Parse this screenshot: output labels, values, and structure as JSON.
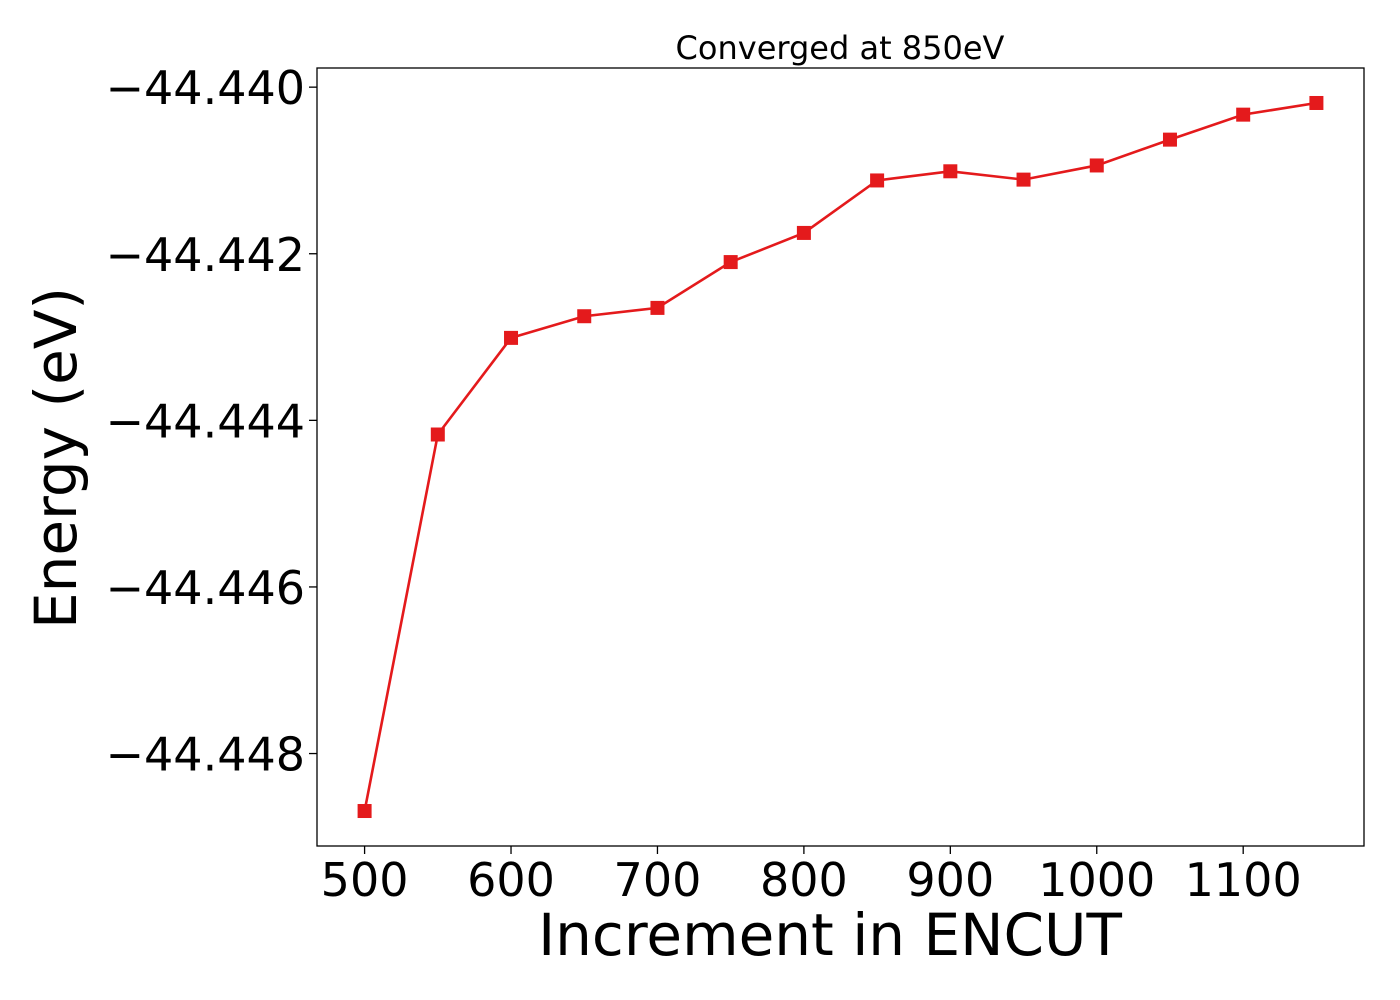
{
  "chart_data": {
    "type": "line",
    "title": "Converged at 850eV",
    "xlabel": "Increment in ENCUT",
    "ylabel": "Energy (eV)",
    "x": [
      500,
      550,
      600,
      650,
      700,
      750,
      800,
      850,
      900,
      950,
      1000,
      1050,
      1100,
      1150
    ],
    "series": [
      {
        "values": [
          -44.44869,
          -44.44417,
          -44.44301,
          -44.44275,
          -44.44265,
          -44.4421,
          -44.44175,
          -44.44112,
          -44.44101,
          -44.44111,
          -44.44094,
          -44.44063,
          -44.44033,
          -44.44019
        ],
        "color": "#e41a1c",
        "marker": "square"
      }
    ],
    "xlim": [
      467.5,
      1182.5
    ],
    "ylim": [
      -44.44911,
      -44.43977
    ],
    "xticks": [
      500,
      600,
      700,
      800,
      900,
      1000,
      1100
    ],
    "xtick_labels": [
      "500",
      "600",
      "700",
      "800",
      "900",
      "1000",
      "1100"
    ],
    "yticks": [
      -44.44,
      -44.442,
      -44.444,
      -44.446,
      -44.448
    ],
    "ytick_labels": [
      "−44.440",
      "−44.442",
      "−44.444",
      "−44.446",
      "−44.448"
    ],
    "grid": false,
    "legend": "none"
  }
}
